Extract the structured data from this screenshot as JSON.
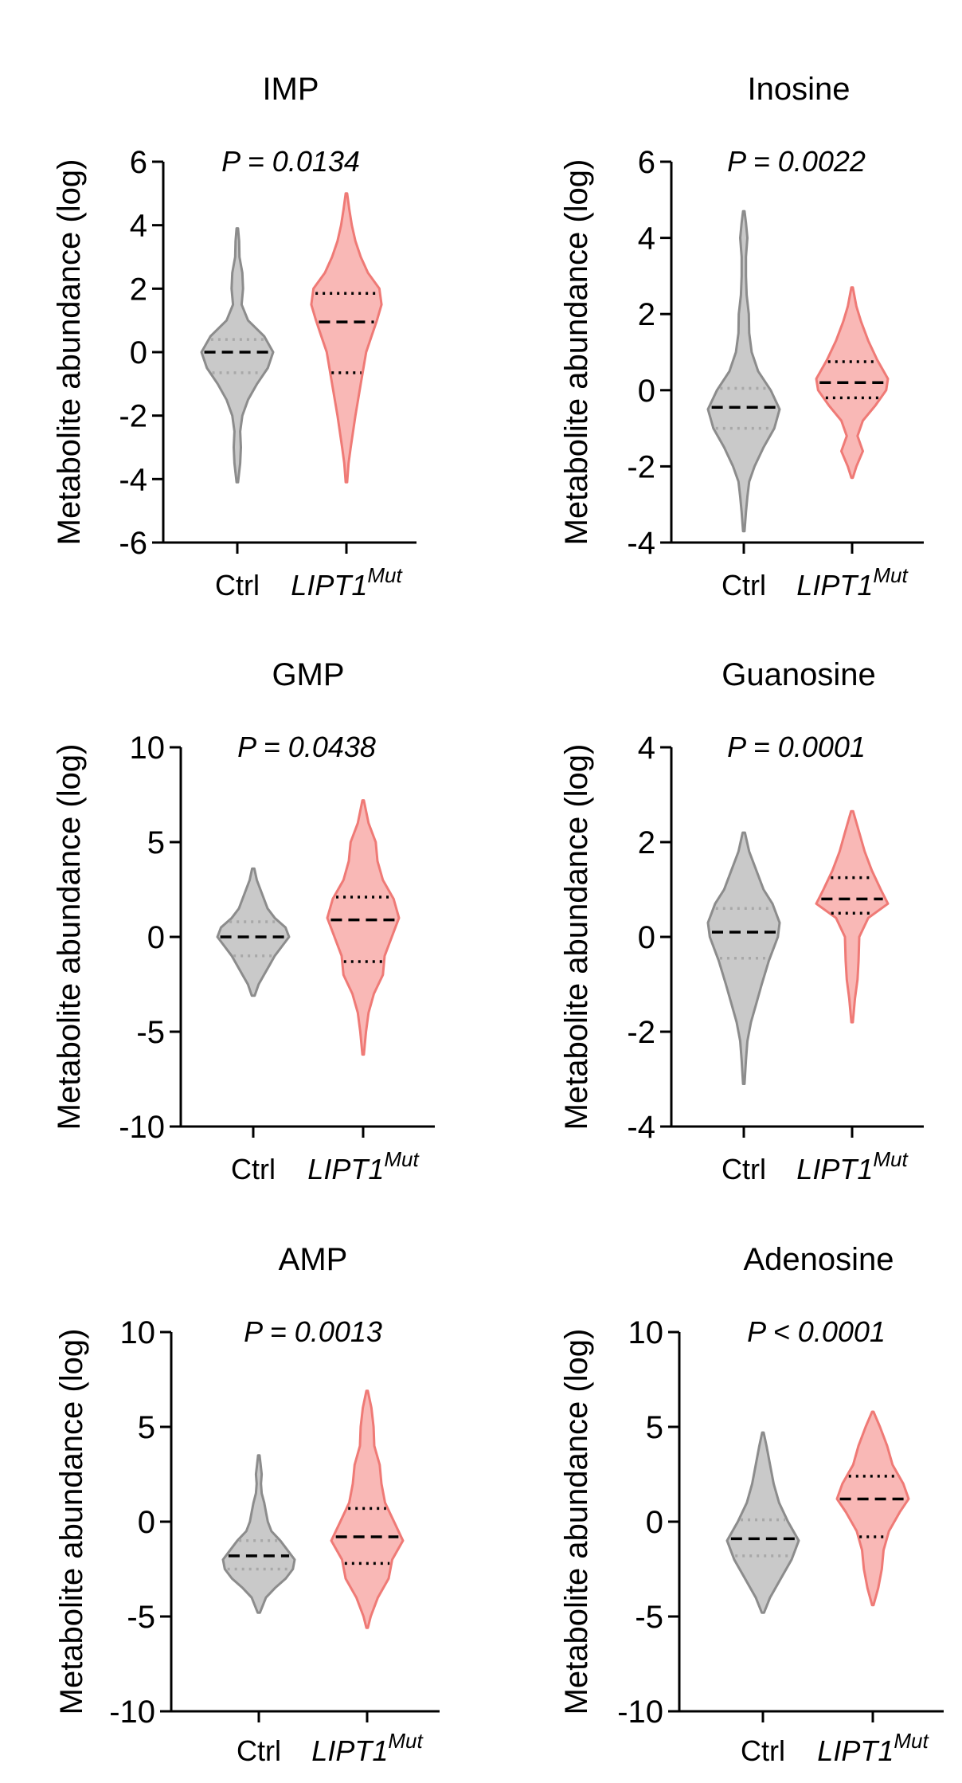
{
  "colors": {
    "ctrl_fill": "#c9c9c9",
    "ctrl_stroke": "#8c8c8c",
    "mut_fill": "#f9b8b6",
    "mut_stroke": "#ef7a76",
    "axis": "#000000",
    "quartile_ctrl": "#a8a8a8",
    "quartile_mut": "#000000"
  },
  "chart_data": [
    {
      "type": "violin",
      "title": "IMP",
      "ylabel": "Metabolite abundance (log)",
      "pvalue": "P = 0.0134",
      "ylim": [
        -6,
        6
      ],
      "yticks": [
        6,
        4,
        2,
        0,
        -2,
        -4,
        -6
      ],
      "ytick_labels": [
        "6",
        "4",
        "2",
        "0",
        "-2",
        "-4",
        "-6"
      ],
      "categories": [
        "Ctrl",
        "LIPT1"
      ],
      "category_superscripts": [
        "",
        "Mut"
      ],
      "series": [
        {
          "name": "Ctrl",
          "min": -4.1,
          "q1": -0.65,
          "median": 0.0,
          "q3": 0.4,
          "max": 3.9,
          "profile": [
            [
              -4.1,
              0.02
            ],
            [
              -3.5,
              0.08
            ],
            [
              -3.0,
              0.1
            ],
            [
              -2.5,
              0.08
            ],
            [
              -2.0,
              0.14
            ],
            [
              -1.5,
              0.3
            ],
            [
              -1.0,
              0.55
            ],
            [
              -0.5,
              0.85
            ],
            [
              0.0,
              1.0
            ],
            [
              0.5,
              0.75
            ],
            [
              1.0,
              0.3
            ],
            [
              1.5,
              0.12
            ],
            [
              2.0,
              0.16
            ],
            [
              2.5,
              0.14
            ],
            [
              3.0,
              0.06
            ],
            [
              3.5,
              0.05
            ],
            [
              3.9,
              0.02
            ]
          ]
        },
        {
          "name": "LIPT1Mut",
          "min": -4.1,
          "q1": -0.65,
          "median": 0.95,
          "q3": 1.85,
          "max": 5.0,
          "profile": [
            [
              -4.1,
              0.02
            ],
            [
              -3.5,
              0.06
            ],
            [
              -3.0,
              0.12
            ],
            [
              -2.0,
              0.25
            ],
            [
              -1.0,
              0.4
            ],
            [
              0.0,
              0.55
            ],
            [
              0.5,
              0.7
            ],
            [
              1.0,
              0.85
            ],
            [
              1.5,
              0.98
            ],
            [
              2.0,
              0.92
            ],
            [
              2.5,
              0.6
            ],
            [
              3.0,
              0.4
            ],
            [
              3.5,
              0.25
            ],
            [
              4.0,
              0.15
            ],
            [
              4.5,
              0.08
            ],
            [
              5.0,
              0.02
            ]
          ]
        }
      ]
    },
    {
      "type": "violin",
      "title": "Inosine",
      "ylabel": "Metabolite abundance (log)",
      "pvalue": "P = 0.0022",
      "ylim": [
        -4,
        6
      ],
      "yticks": [
        6,
        4,
        2,
        0,
        -2,
        -4
      ],
      "ytick_labels": [
        "6",
        "4",
        "2",
        "0",
        "-2",
        "-4"
      ],
      "categories": [
        "Ctrl",
        "LIPT1"
      ],
      "category_superscripts": [
        "",
        "Mut"
      ],
      "series": [
        {
          "name": "Ctrl",
          "min": -3.7,
          "q1": -1.0,
          "median": -0.45,
          "q3": 0.05,
          "max": 4.7,
          "profile": [
            [
              -3.7,
              0.02
            ],
            [
              -3.2,
              0.06
            ],
            [
              -2.8,
              0.1
            ],
            [
              -2.4,
              0.15
            ],
            [
              -2.0,
              0.3
            ],
            [
              -1.5,
              0.55
            ],
            [
              -1.0,
              0.85
            ],
            [
              -0.5,
              1.0
            ],
            [
              0.0,
              0.75
            ],
            [
              0.5,
              0.4
            ],
            [
              1.0,
              0.22
            ],
            [
              1.5,
              0.15
            ],
            [
              2.0,
              0.14
            ],
            [
              2.5,
              0.08
            ],
            [
              3.0,
              0.06
            ],
            [
              3.5,
              0.06
            ],
            [
              4.0,
              0.1
            ],
            [
              4.4,
              0.06
            ],
            [
              4.7,
              0.02
            ]
          ]
        },
        {
          "name": "LIPT1Mut",
          "min": -2.3,
          "q1": -0.2,
          "median": 0.2,
          "q3": 0.75,
          "max": 2.7,
          "profile": [
            [
              -2.3,
              0.02
            ],
            [
              -2.0,
              0.12
            ],
            [
              -1.6,
              0.3
            ],
            [
              -1.2,
              0.15
            ],
            [
              -0.8,
              0.3
            ],
            [
              -0.4,
              0.65
            ],
            [
              0.0,
              0.95
            ],
            [
              0.3,
              1.0
            ],
            [
              0.8,
              0.7
            ],
            [
              1.3,
              0.45
            ],
            [
              1.8,
              0.25
            ],
            [
              2.2,
              0.12
            ],
            [
              2.7,
              0.02
            ]
          ]
        }
      ]
    },
    {
      "type": "violin",
      "title": "GMP",
      "ylabel": "Metabolite abundance (log)",
      "pvalue": "P = 0.0438",
      "ylim": [
        -10,
        10
      ],
      "yticks": [
        10,
        5,
        0,
        -5,
        -10
      ],
      "ytick_labels": [
        "10",
        "5",
        "0",
        "-5",
        "-10"
      ],
      "categories": [
        "Ctrl",
        "LIPT1"
      ],
      "category_superscripts": [
        "",
        "Mut"
      ],
      "series": [
        {
          "name": "Ctrl",
          "min": -3.1,
          "q1": -1.0,
          "median": 0.0,
          "q3": 0.8,
          "max": 3.6,
          "profile": [
            [
              -3.1,
              0.04
            ],
            [
              -2.5,
              0.15
            ],
            [
              -2.0,
              0.3
            ],
            [
              -1.5,
              0.45
            ],
            [
              -1.0,
              0.6
            ],
            [
              -0.5,
              0.8
            ],
            [
              0.0,
              1.0
            ],
            [
              0.5,
              0.9
            ],
            [
              1.0,
              0.6
            ],
            [
              1.5,
              0.4
            ],
            [
              2.0,
              0.3
            ],
            [
              2.5,
              0.2
            ],
            [
              3.0,
              0.1
            ],
            [
              3.6,
              0.03
            ]
          ]
        },
        {
          "name": "LIPT1Mut",
          "min": -6.2,
          "q1": -1.3,
          "median": 0.9,
          "q3": 2.1,
          "max": 7.2,
          "profile": [
            [
              -6.2,
              0.02
            ],
            [
              -5.0,
              0.08
            ],
            [
              -4.0,
              0.15
            ],
            [
              -3.0,
              0.3
            ],
            [
              -2.0,
              0.55
            ],
            [
              -1.0,
              0.6
            ],
            [
              0.0,
              0.8
            ],
            [
              1.0,
              1.0
            ],
            [
              2.0,
              0.85
            ],
            [
              3.0,
              0.55
            ],
            [
              4.0,
              0.4
            ],
            [
              5.0,
              0.35
            ],
            [
              6.0,
              0.15
            ],
            [
              7.2,
              0.02
            ]
          ]
        }
      ]
    },
    {
      "type": "violin",
      "title": "Guanosine",
      "ylabel": "Metabolite abundance (log)",
      "pvalue": "P = 0.0001",
      "ylim": [
        -4,
        4
      ],
      "yticks": [
        4,
        2,
        0,
        -2,
        -4
      ],
      "ytick_labels": [
        "4",
        "2",
        "0",
        "-2",
        "-4"
      ],
      "categories": [
        "Ctrl",
        "LIPT1"
      ],
      "category_superscripts": [
        "",
        "Mut"
      ],
      "series": [
        {
          "name": "Ctrl",
          "min": -3.1,
          "q1": -0.45,
          "median": 0.1,
          "q3": 0.6,
          "max": 2.2,
          "profile": [
            [
              -3.1,
              0.02
            ],
            [
              -2.6,
              0.06
            ],
            [
              -2.2,
              0.1
            ],
            [
              -1.8,
              0.2
            ],
            [
              -1.4,
              0.35
            ],
            [
              -1.0,
              0.5
            ],
            [
              -0.5,
              0.7
            ],
            [
              0.0,
              0.95
            ],
            [
              0.3,
              1.0
            ],
            [
              0.7,
              0.8
            ],
            [
              1.0,
              0.55
            ],
            [
              1.4,
              0.35
            ],
            [
              1.8,
              0.15
            ],
            [
              2.2,
              0.03
            ]
          ]
        },
        {
          "name": "LIPT1Mut",
          "min": -1.8,
          "q1": 0.5,
          "median": 0.8,
          "q3": 1.25,
          "max": 2.65,
          "profile": [
            [
              -1.8,
              0.02
            ],
            [
              -1.3,
              0.08
            ],
            [
              -0.9,
              0.15
            ],
            [
              -0.5,
              0.18
            ],
            [
              0.0,
              0.2
            ],
            [
              0.4,
              0.45
            ],
            [
              0.7,
              1.0
            ],
            [
              1.0,
              0.8
            ],
            [
              1.4,
              0.55
            ],
            [
              1.8,
              0.35
            ],
            [
              2.2,
              0.2
            ],
            [
              2.65,
              0.03
            ]
          ]
        }
      ]
    },
    {
      "type": "violin",
      "title": "AMP",
      "ylabel": "Metabolite abundance (log)",
      "pvalue": "P = 0.0013",
      "ylim": [
        -10,
        10
      ],
      "yticks": [
        10,
        5,
        0,
        -5,
        -10
      ],
      "ytick_labels": [
        "10",
        "5",
        "0",
        "-5",
        "-10"
      ],
      "categories": [
        "Ctrl",
        "LIPT1"
      ],
      "category_superscripts": [
        "",
        "Mut"
      ],
      "series": [
        {
          "name": "Ctrl",
          "min": -4.8,
          "q1": -2.5,
          "median": -1.8,
          "q3": -1.0,
          "max": 3.5,
          "profile": [
            [
              -4.8,
              0.03
            ],
            [
              -4.0,
              0.2
            ],
            [
              -3.5,
              0.45
            ],
            [
              -3.0,
              0.75
            ],
            [
              -2.5,
              0.95
            ],
            [
              -2.0,
              1.0
            ],
            [
              -1.5,
              0.8
            ],
            [
              -1.0,
              0.6
            ],
            [
              -0.5,
              0.35
            ],
            [
              0.0,
              0.25
            ],
            [
              0.5,
              0.2
            ],
            [
              1.0,
              0.15
            ],
            [
              1.5,
              0.08
            ],
            [
              2.0,
              0.06
            ],
            [
              2.5,
              0.08
            ],
            [
              3.0,
              0.05
            ],
            [
              3.5,
              0.02
            ]
          ]
        },
        {
          "name": "LIPT1Mut",
          "min": -5.6,
          "q1": -2.2,
          "median": -0.8,
          "q3": 0.7,
          "max": 6.9,
          "profile": [
            [
              -5.6,
              0.02
            ],
            [
              -5.0,
              0.1
            ],
            [
              -4.0,
              0.3
            ],
            [
              -3.0,
              0.6
            ],
            [
              -2.0,
              0.7
            ],
            [
              -1.0,
              1.0
            ],
            [
              0.0,
              0.75
            ],
            [
              1.0,
              0.5
            ],
            [
              2.0,
              0.4
            ],
            [
              3.0,
              0.35
            ],
            [
              4.0,
              0.2
            ],
            [
              5.0,
              0.18
            ],
            [
              6.0,
              0.12
            ],
            [
              6.9,
              0.02
            ]
          ]
        }
      ]
    },
    {
      "type": "violin",
      "title": "Adenosine",
      "ylabel": "Metabolite abundance (log)",
      "pvalue": "P < 0.0001",
      "ylim": [
        -10,
        10
      ],
      "yticks": [
        10,
        5,
        0,
        -5,
        -10
      ],
      "ytick_labels": [
        "10",
        "5",
        "0",
        "-5",
        "-10"
      ],
      "categories": [
        "Ctrl",
        "LIPT1"
      ],
      "category_superscripts": [
        "",
        "Mut"
      ],
      "series": [
        {
          "name": "Ctrl",
          "min": -4.8,
          "q1": -1.8,
          "median": -0.9,
          "q3": 0.1,
          "max": 4.7,
          "profile": [
            [
              -4.8,
              0.03
            ],
            [
              -4.0,
              0.2
            ],
            [
              -3.0,
              0.5
            ],
            [
              -2.0,
              0.8
            ],
            [
              -1.0,
              1.0
            ],
            [
              0.0,
              0.7
            ],
            [
              1.0,
              0.45
            ],
            [
              2.0,
              0.3
            ],
            [
              3.0,
              0.2
            ],
            [
              4.0,
              0.1
            ],
            [
              4.7,
              0.02
            ]
          ]
        },
        {
          "name": "LIPT1Mut",
          "min": -4.4,
          "q1": -0.8,
          "median": 1.2,
          "q3": 2.4,
          "max": 5.8,
          "profile": [
            [
              -4.4,
              0.02
            ],
            [
              -3.5,
              0.15
            ],
            [
              -2.5,
              0.25
            ],
            [
              -1.5,
              0.3
            ],
            [
              -0.5,
              0.45
            ],
            [
              0.5,
              0.75
            ],
            [
              1.2,
              1.0
            ],
            [
              2.0,
              0.85
            ],
            [
              3.0,
              0.55
            ],
            [
              4.0,
              0.4
            ],
            [
              5.0,
              0.2
            ],
            [
              5.8,
              0.02
            ]
          ]
        }
      ]
    }
  ]
}
